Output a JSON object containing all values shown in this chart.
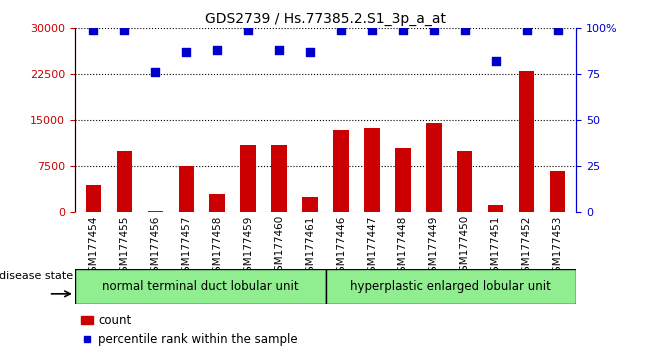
{
  "title": "GDS2739 / Hs.77385.2.S1_3p_a_at",
  "categories": [
    "GSM177454",
    "GSM177455",
    "GSM177456",
    "GSM177457",
    "GSM177458",
    "GSM177459",
    "GSM177460",
    "GSM177461",
    "GSM177446",
    "GSM177447",
    "GSM177448",
    "GSM177449",
    "GSM177450",
    "GSM177451",
    "GSM177452",
    "GSM177453"
  ],
  "bar_values": [
    4500,
    10000,
    200,
    7500,
    3000,
    11000,
    11000,
    2500,
    13500,
    13800,
    10500,
    14500,
    10000,
    1200,
    23000,
    6800
  ],
  "percentile_values": [
    99,
    99,
    76,
    87,
    88,
    99,
    88,
    87,
    99,
    99,
    99,
    99,
    99,
    82,
    99,
    99
  ],
  "bar_color": "#cc0000",
  "dot_color": "#0000cc",
  "left_axis_color": "#cc0000",
  "right_axis_color": "#0000cc",
  "ylim_left": [
    0,
    30000
  ],
  "ylim_right": [
    0,
    100
  ],
  "yticks_left": [
    0,
    7500,
    15000,
    22500,
    30000
  ],
  "yticks_right": [
    0,
    25,
    50,
    75,
    100
  ],
  "group1_label": "normal terminal duct lobular unit",
  "group1_count": 8,
  "group2_label": "hyperplastic enlarged lobular unit",
  "group2_count": 8,
  "disease_state_label": "disease state",
  "legend_count_label": "count",
  "legend_percentile_label": "percentile rank within the sample",
  "group1_color": "#90ee90",
  "group2_color": "#90ee90",
  "xlabel_area_color": "#c8c8c8",
  "background_color": "#ffffff",
  "bar_width": 0.5,
  "dot_size": 28,
  "title_fontsize": 10,
  "axis_fontsize": 8,
  "tick_fontsize": 7.5,
  "label_fontsize": 8.5
}
